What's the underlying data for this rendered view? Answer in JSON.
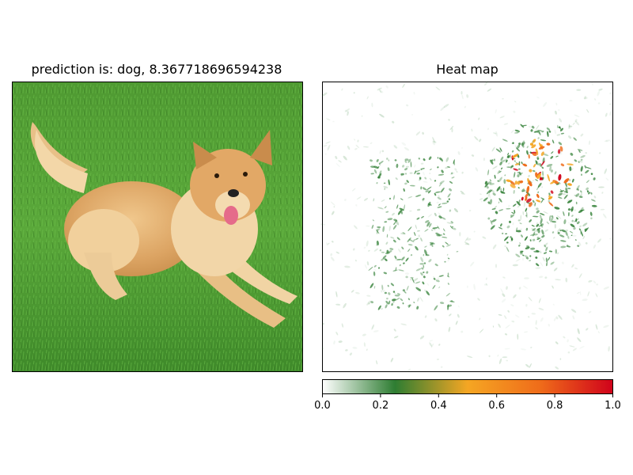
{
  "left_panel": {
    "title": "prediction is: dog, 8.367718696594238",
    "image_subject": "dog"
  },
  "right_panel": {
    "title": "Heat map"
  },
  "chart_data": {
    "type": "heatmap",
    "title": "Heat map",
    "colormap": [
      "#ffffff",
      "#2e7d32",
      "#f5a623",
      "#d0021b"
    ],
    "colorbar": {
      "range": [
        0.0,
        1.0
      ],
      "ticks": [
        0.0,
        0.2,
        0.4,
        0.6,
        0.8,
        1.0
      ],
      "tick_labels": [
        "0.0",
        "0.2",
        "0.4",
        "0.6",
        "0.8",
        "1.0"
      ]
    }
  }
}
